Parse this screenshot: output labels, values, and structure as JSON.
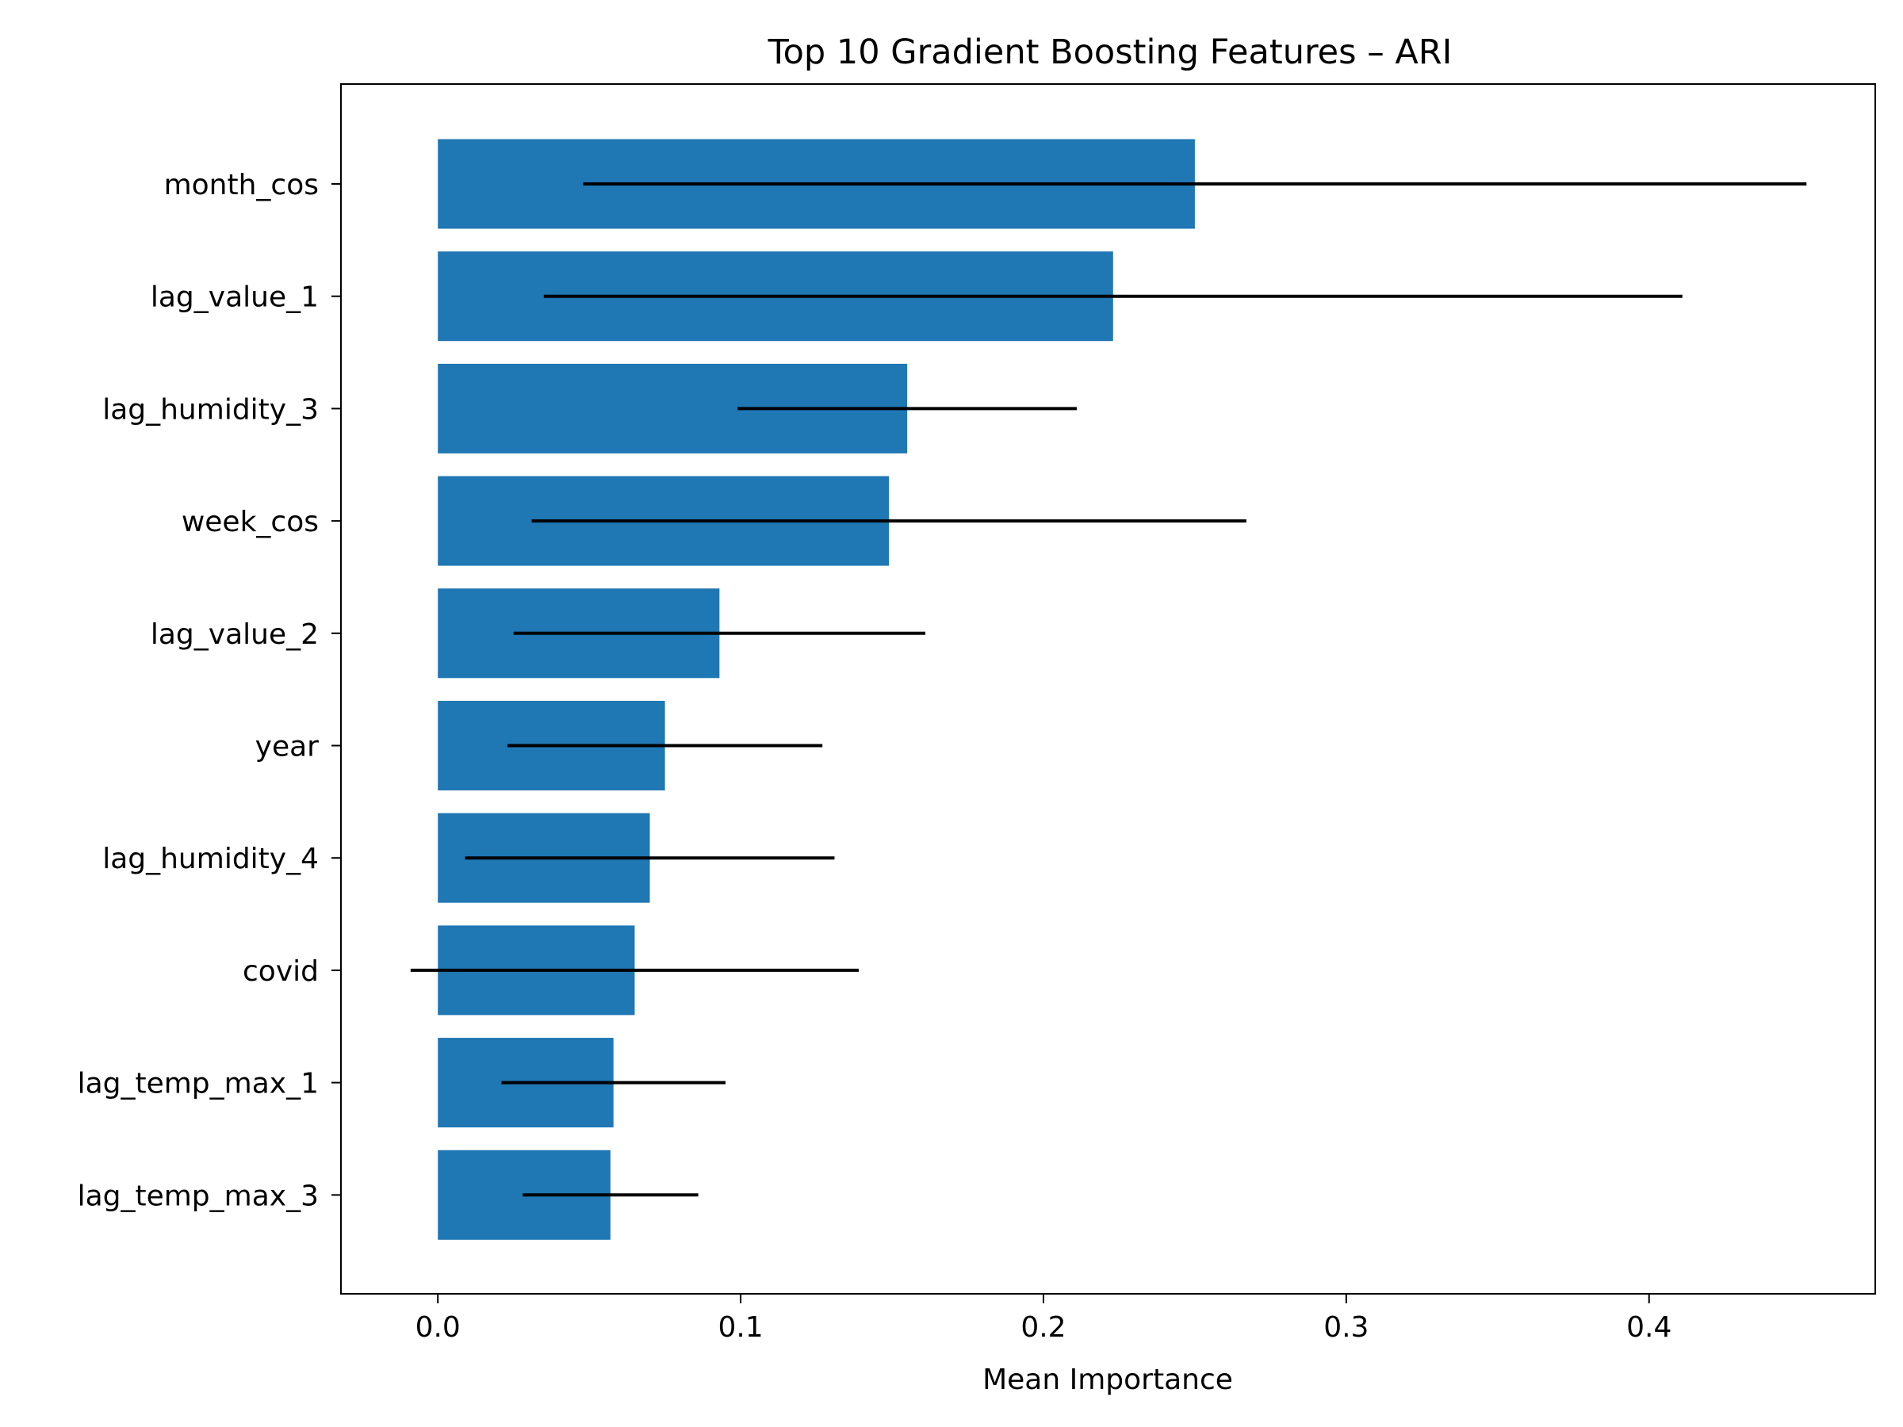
{
  "chart_data": {
    "type": "bar",
    "orientation": "horizontal",
    "title": "Top 10 Gradient Boosting Features – ARI",
    "xlabel": "Mean Importance",
    "ylabel": "",
    "xlim": [
      -0.032,
      0.4747
    ],
    "x_ticks": [
      0.0,
      0.1,
      0.2,
      0.3,
      0.4
    ],
    "x_tick_labels": [
      "0.0",
      "0.1",
      "0.2",
      "0.3",
      "0.4"
    ],
    "categories": [
      "month_cos",
      "lag_value_1",
      "lag_humidity_3",
      "week_cos",
      "lag_value_2",
      "year",
      "lag_humidity_4",
      "covid",
      "lag_temp_max_1",
      "lag_temp_max_3"
    ],
    "values": [
      0.25,
      0.223,
      0.155,
      0.149,
      0.093,
      0.075,
      0.07,
      0.065,
      0.058,
      0.057
    ],
    "errors": [
      0.202,
      0.188,
      0.056,
      0.118,
      0.068,
      0.052,
      0.061,
      0.074,
      0.037,
      0.029
    ],
    "error_offsets": [
      0.0,
      0.0,
      0.0,
      0.0,
      0.0,
      0.0,
      0.0,
      0.0,
      0.0,
      0.0
    ],
    "bar_color": "#1f77b4",
    "error_color": "#000000",
    "grid": false
  }
}
